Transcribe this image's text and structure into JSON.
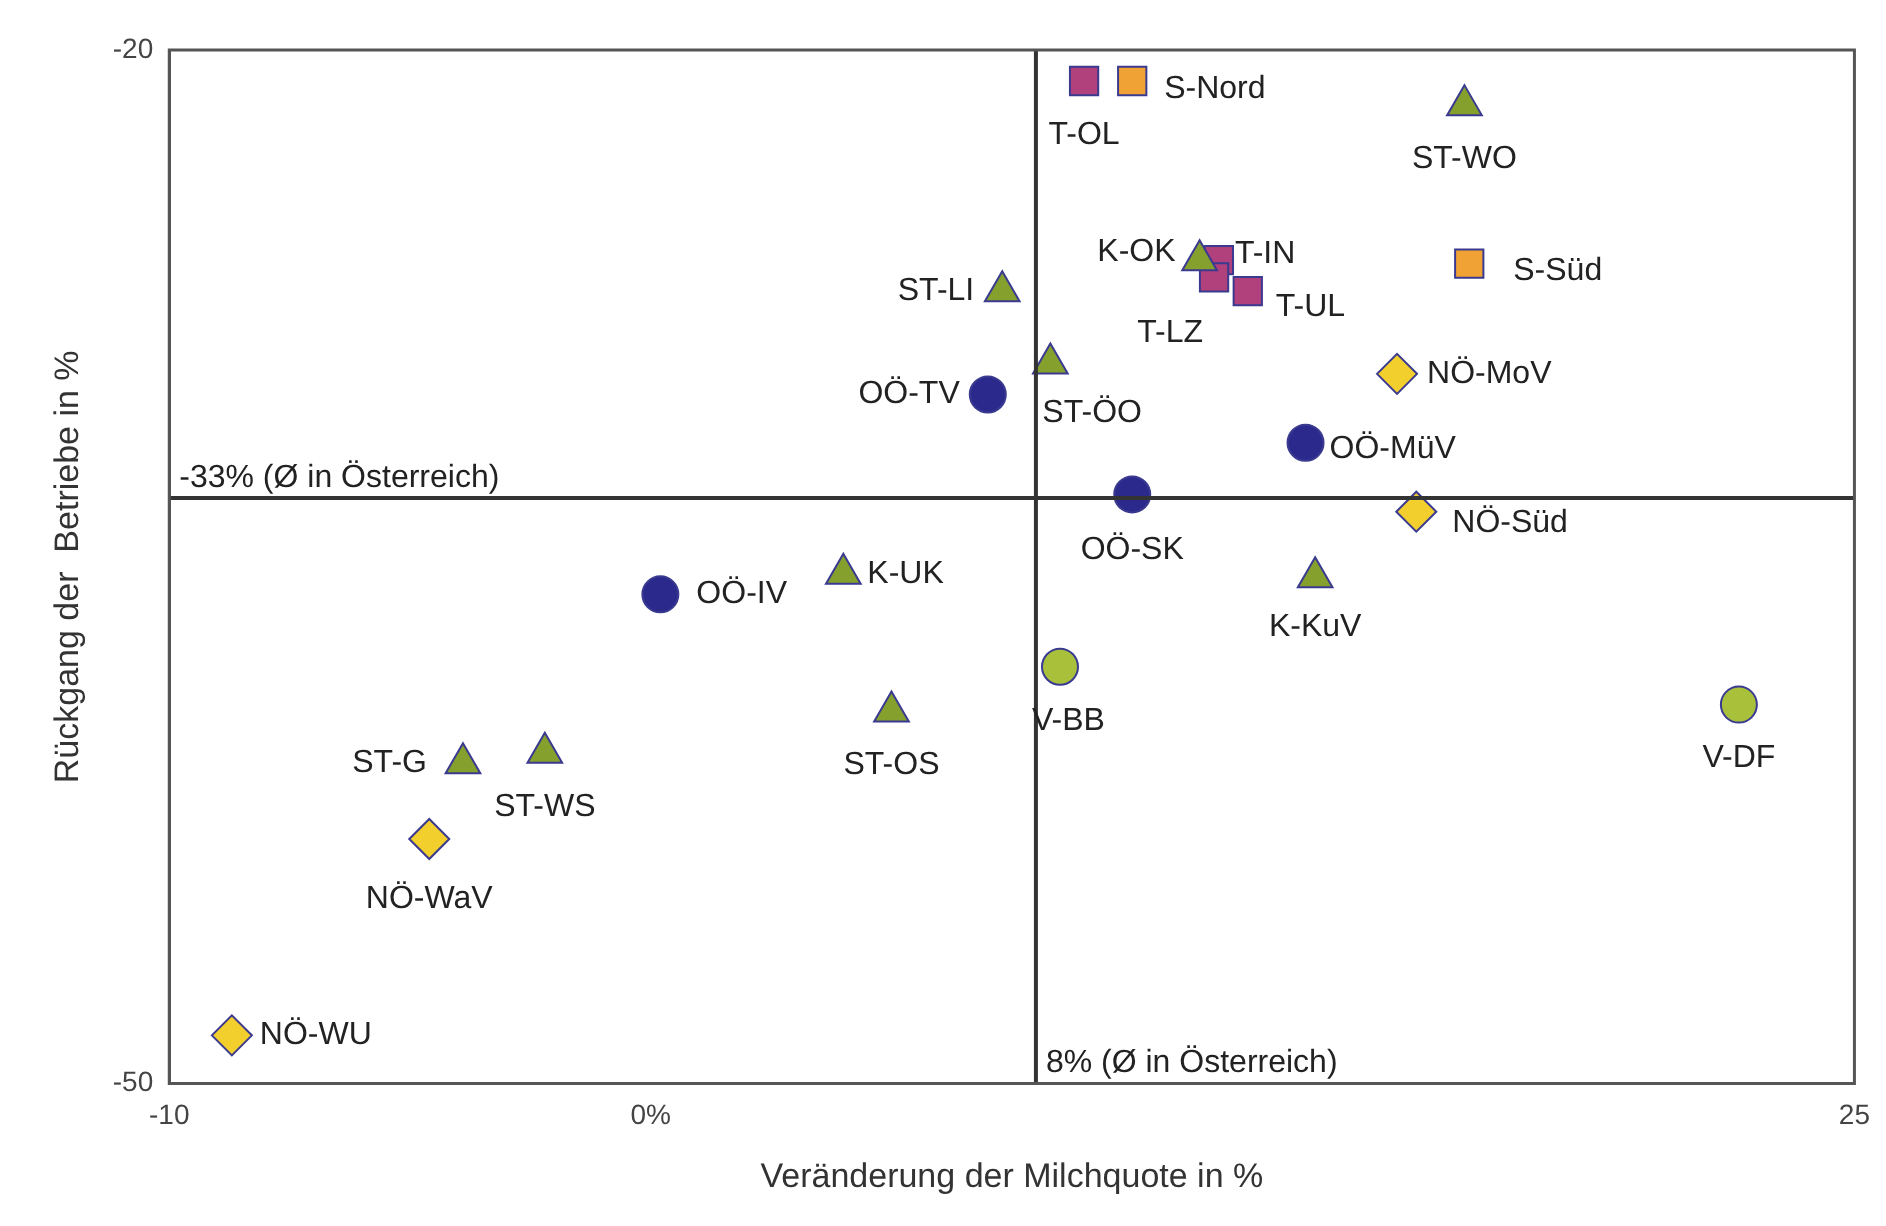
{
  "chart_data": {
    "type": "scatter",
    "xlabel": "Veränderung der Milchquote in %",
    "ylabel": "Rückgang der  Betriebe in %",
    "xlim": [
      -10,
      25
    ],
    "ylim": [
      -50,
      -20
    ],
    "xticks": [
      -10,
      {
        "value": 0,
        "label": "0%"
      },
      25
    ],
    "yticks": [
      -20,
      -50
    ],
    "legend": false,
    "series": [
      {
        "color": "#2b2a8c",
        "marker": "circle",
        "x": [
          7.0,
          13.6,
          10.0,
          0.2
        ],
        "values": [
          -30.0,
          -31.4,
          -32.9,
          -35.8
        ]
      },
      {
        "color": "#86a02e",
        "marker": "triangle",
        "x": [
          7.3,
          8.3,
          11.4,
          16.9,
          13.8,
          4.0,
          5.0,
          -3.9,
          -2.2
        ],
        "values": [
          -27.0,
          -29.1,
          -26.1,
          -21.6,
          -35.3,
          -35.2,
          -39.2,
          -40.7,
          -40.4
        ]
      },
      {
        "color": "#f2cf2c",
        "marker": "diamond",
        "x": [
          15.5,
          15.9,
          -4.6,
          -8.7
        ],
        "values": [
          -29.4,
          -33.4,
          -42.9,
          -48.6
        ]
      },
      {
        "color": "#b0417c",
        "marker": "square",
        "x": [
          9.0,
          11.8,
          11.7,
          12.4
        ],
        "values": [
          -20.9,
          -26.1,
          -26.6,
          -27.0
        ]
      },
      {
        "color": "#f0a235",
        "marker": "square",
        "x": [
          10.0,
          17.0
        ],
        "values": [
          -20.9,
          -26.2
        ]
      },
      {
        "color": "#a9c13a",
        "marker": "circle",
        "x": [
          8.5,
          22.6
        ],
        "values": [
          -37.9,
          -39.0
        ]
      }
    ],
    "ref_lines": [
      {
        "axis": "y",
        "value": -33,
        "label": "-33% (Ø in Österreich)",
        "color": "#333333"
      },
      {
        "axis": "x",
        "value": 8,
        "label": "8% (Ø in Österreich)",
        "color": "#333333"
      }
    ],
    "annotations": [
      {
        "text": "OÖ-TV",
        "x": 7.0,
        "y": -30.0
      },
      {
        "text": "OÖ-MüV",
        "x": 13.6,
        "y": -31.4
      },
      {
        "text": "OÖ-SK",
        "x": 10.0,
        "y": -32.9
      },
      {
        "text": "OÖ-IV",
        "x": 0.2,
        "y": -35.8
      },
      {
        "text": "ST-LI",
        "x": 7.3,
        "y": -27.0
      },
      {
        "text": "ST-ÖO",
        "x": 8.3,
        "y": -29.1
      },
      {
        "text": "K-OK",
        "x": 11.4,
        "y": -26.1
      },
      {
        "text": "ST-WO",
        "x": 16.9,
        "y": -21.6
      },
      {
        "text": "K-KuV",
        "x": 13.8,
        "y": -35.3
      },
      {
        "text": "K-UK",
        "x": 4.0,
        "y": -35.2
      },
      {
        "text": "ST-OS",
        "x": 5.0,
        "y": -39.2
      },
      {
        "text": "ST-G",
        "x": -3.9,
        "y": -40.7
      },
      {
        "text": "ST-WS",
        "x": -2.2,
        "y": -40.4
      },
      {
        "text": "NÖ-MoV",
        "x": 15.5,
        "y": -29.4
      },
      {
        "text": "NÖ-Süd",
        "x": 15.9,
        "y": -33.4
      },
      {
        "text": "NÖ-WaV",
        "x": -4.6,
        "y": -42.9
      },
      {
        "text": "NÖ-WU",
        "x": -8.7,
        "y": -48.6
      },
      {
        "text": "T-OL",
        "x": 9.0,
        "y": -20.9
      },
      {
        "text": "T-IN",
        "x": 11.8,
        "y": -26.1
      },
      {
        "text": "T-LZ",
        "x": 11.7,
        "y": -26.6
      },
      {
        "text": "T-UL",
        "x": 12.4,
        "y": -27.0
      },
      {
        "text": "S-Nord",
        "x": 10.0,
        "y": -20.9
      },
      {
        "text": "S-Süd",
        "x": 17.0,
        "y": -26.2
      },
      {
        "text": "V-BB",
        "x": 8.5,
        "y": -37.9
      },
      {
        "text": "V-DF",
        "x": 22.6,
        "y": -39.0
      }
    ]
  }
}
